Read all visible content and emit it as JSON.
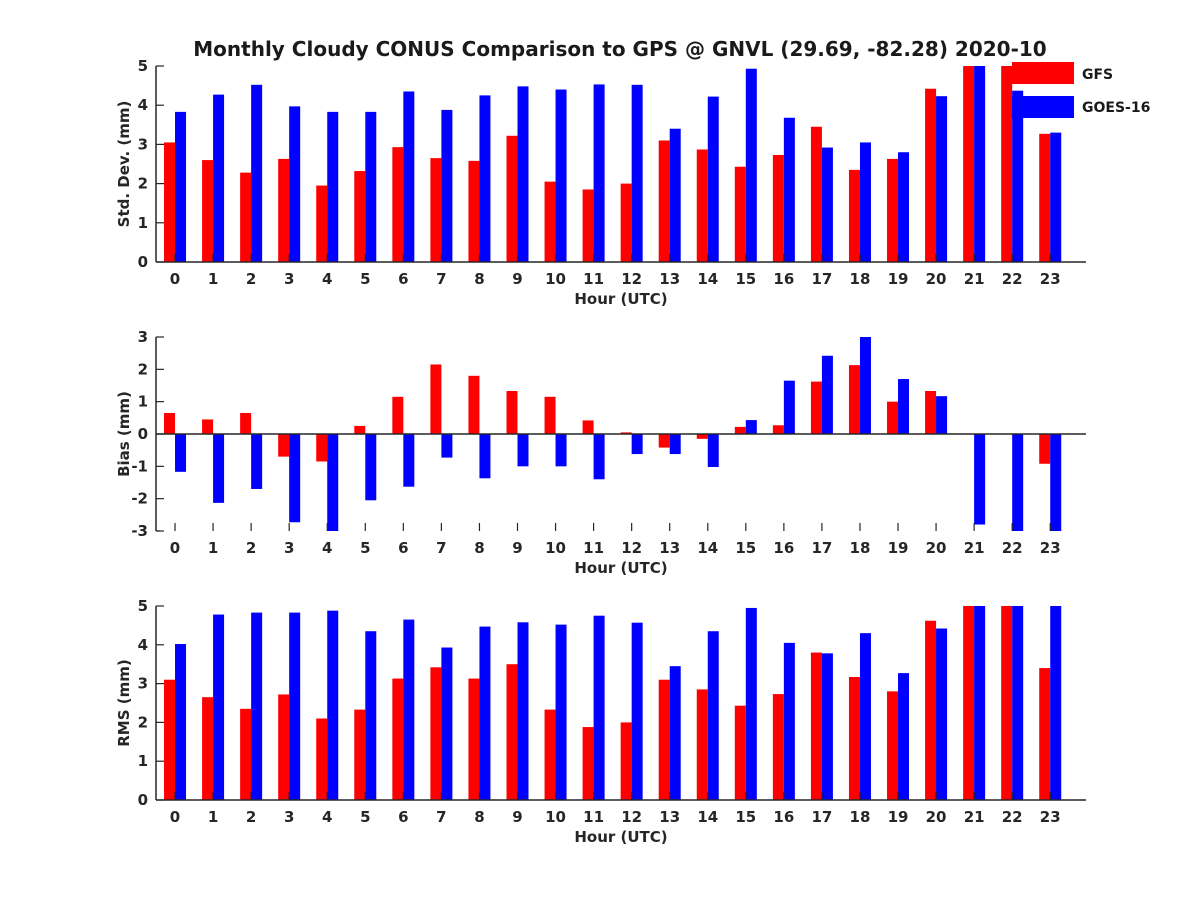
{
  "title": "Monthly Cloudy CONUS Comparison to GPS @ GNVL (29.69, -82.28) 2020-10",
  "legend": [
    {
      "name": "GFS",
      "color": "#ff0000"
    },
    {
      "name": "GOES-16",
      "color": "#0000ff"
    }
  ],
  "chart_data": [
    {
      "type": "bar",
      "xlabel": "Hour (UTC)",
      "ylabel": "Std. Dev. (mm)",
      "ylim": [
        0,
        5
      ],
      "yticks": [
        0,
        1,
        2,
        3,
        4,
        5
      ],
      "categories": [
        "0",
        "1",
        "2",
        "3",
        "4",
        "5",
        "6",
        "7",
        "8",
        "9",
        "10",
        "11",
        "12",
        "13",
        "14",
        "15",
        "16",
        "17",
        "18",
        "19",
        "20",
        "21",
        "22",
        "23"
      ],
      "series": [
        {
          "name": "GFS",
          "color": "#ff0000",
          "values": [
            3.05,
            2.6,
            2.28,
            2.63,
            1.95,
            2.32,
            2.93,
            2.65,
            2.58,
            3.22,
            2.05,
            1.85,
            2.0,
            3.1,
            2.87,
            2.43,
            2.73,
            3.45,
            2.35,
            2.63,
            4.42,
            5.0,
            5.0,
            3.27
          ]
        },
        {
          "name": "GOES-16",
          "color": "#0000ff",
          "values": [
            3.83,
            4.27,
            4.52,
            3.97,
            3.83,
            3.83,
            4.35,
            3.88,
            4.25,
            4.48,
            4.4,
            4.53,
            4.52,
            3.4,
            4.22,
            4.93,
            3.68,
            2.92,
            3.05,
            2.8,
            4.23,
            5.0,
            4.37,
            3.3
          ]
        }
      ],
      "grid": false
    },
    {
      "type": "bar",
      "xlabel": "Hour (UTC)",
      "ylabel": "Bias (mm)",
      "ylim": [
        -3,
        3
      ],
      "yticks": [
        -3,
        -2,
        -1,
        0,
        1,
        2,
        3
      ],
      "categories": [
        "0",
        "1",
        "2",
        "3",
        "4",
        "5",
        "6",
        "7",
        "8",
        "9",
        "10",
        "11",
        "12",
        "13",
        "14",
        "15",
        "16",
        "17",
        "18",
        "19",
        "20",
        "21",
        "22",
        "23"
      ],
      "series": [
        {
          "name": "GFS",
          "color": "#ff0000",
          "values": [
            0.65,
            0.45,
            0.65,
            -0.7,
            -0.85,
            0.25,
            1.15,
            2.15,
            1.8,
            1.33,
            1.15,
            0.42,
            0.05,
            -0.42,
            -0.15,
            0.22,
            0.27,
            1.62,
            2.13,
            1.0,
            1.33,
            0,
            0,
            -0.92
          ]
        },
        {
          "name": "GOES-16",
          "color": "#0000ff",
          "values": [
            -1.17,
            -2.13,
            -1.7,
            -2.73,
            -3.0,
            -2.05,
            -1.63,
            -0.73,
            -1.37,
            -1.0,
            -1.0,
            -1.4,
            -0.62,
            -0.62,
            -1.02,
            0.43,
            1.65,
            2.42,
            3.0,
            1.7,
            1.17,
            -2.8,
            -3.0,
            -3.0
          ]
        }
      ],
      "grid": false
    },
    {
      "type": "bar",
      "xlabel": "Hour (UTC)",
      "ylabel": "RMS (mm)",
      "ylim": [
        0,
        5
      ],
      "yticks": [
        0,
        1,
        2,
        3,
        4,
        5
      ],
      "categories": [
        "0",
        "1",
        "2",
        "3",
        "4",
        "5",
        "6",
        "7",
        "8",
        "9",
        "10",
        "11",
        "12",
        "13",
        "14",
        "15",
        "16",
        "17",
        "18",
        "19",
        "20",
        "21",
        "22",
        "23"
      ],
      "series": [
        {
          "name": "GFS",
          "color": "#ff0000",
          "values": [
            3.1,
            2.65,
            2.35,
            2.72,
            2.1,
            2.33,
            3.13,
            3.42,
            3.13,
            3.5,
            2.33,
            1.88,
            2.0,
            3.1,
            2.85,
            2.43,
            2.73,
            3.8,
            3.17,
            2.8,
            4.62,
            5.0,
            5.0,
            3.4
          ]
        },
        {
          "name": "GOES-16",
          "color": "#0000ff",
          "values": [
            4.02,
            4.78,
            4.83,
            4.83,
            4.88,
            4.35,
            4.65,
            3.93,
            4.47,
            4.58,
            4.52,
            4.75,
            4.57,
            3.45,
            4.35,
            4.95,
            4.05,
            3.78,
            4.3,
            3.27,
            4.42,
            5.0,
            5.0,
            5.0
          ]
        }
      ],
      "grid": false
    }
  ]
}
